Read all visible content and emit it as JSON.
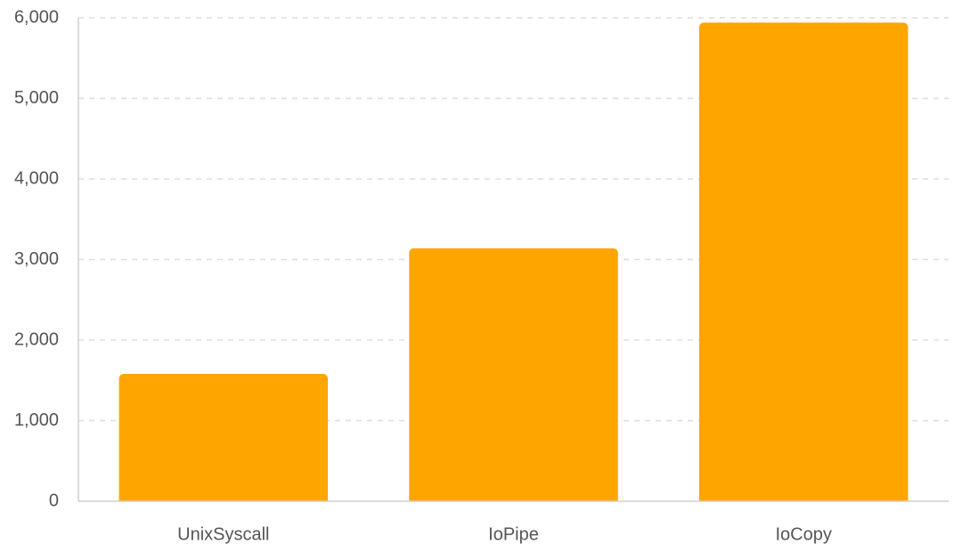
{
  "chart_data": {
    "type": "bar",
    "categories": [
      "UnixSyscall",
      "IoPipe",
      "IoCopy"
    ],
    "values": [
      1580,
      3140,
      5940
    ],
    "ylim": [
      0,
      6000
    ],
    "yticks": [
      0,
      1000,
      2000,
      3000,
      4000,
      5000,
      6000
    ],
    "ytick_labels": [
      "0",
      "1,000",
      "2,000",
      "3,000",
      "4,000",
      "5,000",
      "6,000"
    ],
    "grid": true,
    "bar_color": "#FFA500",
    "title": "",
    "xlabel": "",
    "ylabel": ""
  }
}
